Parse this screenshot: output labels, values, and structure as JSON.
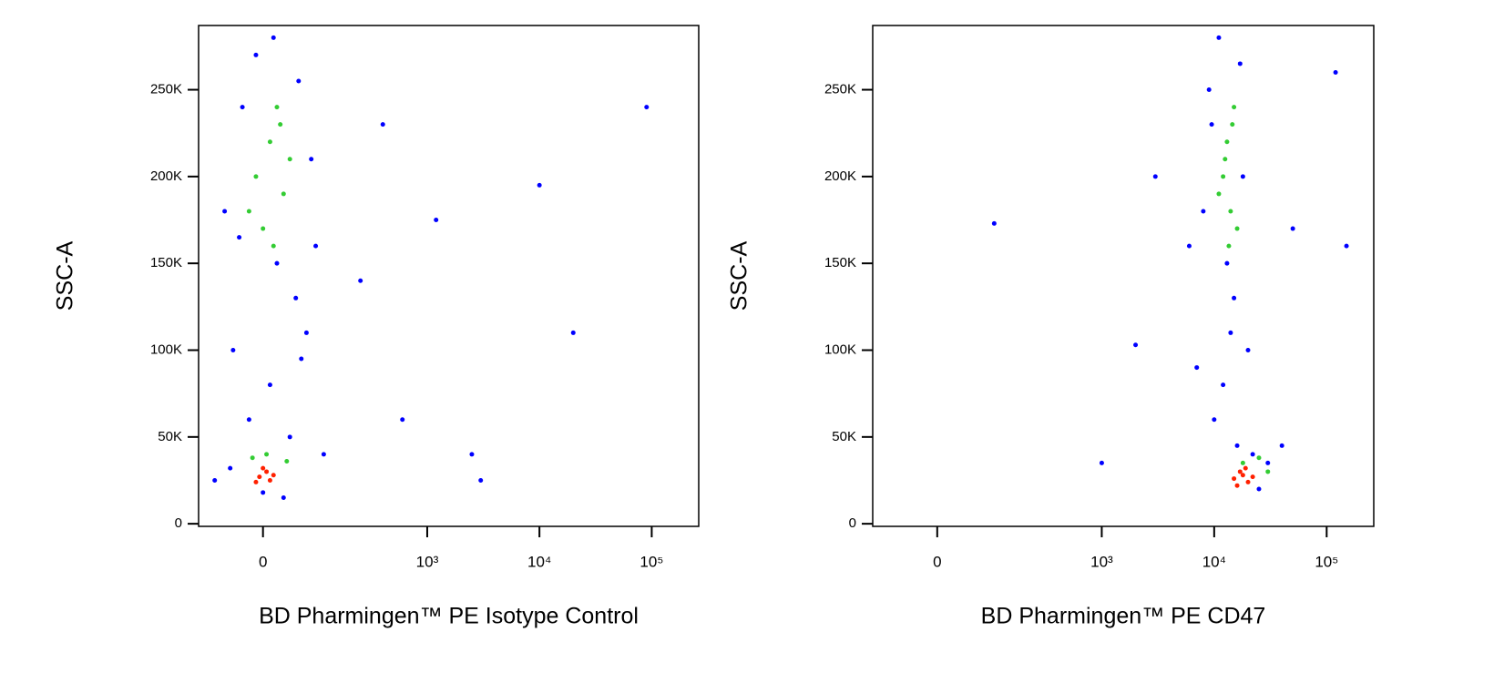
{
  "chart_data": [
    {
      "type": "scatter",
      "xscale": "biex",
      "xlabel": "BD Pharmingen™ PE Isotype Control",
      "ylabel": "SSC-A",
      "xlim": [
        -120,
        262144
      ],
      "ylim": [
        -1500,
        287000
      ],
      "xticks": [
        0,
        {
          "value": 1000,
          "label": "10³"
        },
        {
          "value": 10000,
          "label": "10⁴"
        },
        {
          "value": 100000,
          "label": "10⁵"
        }
      ],
      "yticks": [
        0,
        {
          "value": 50000,
          "label": "50K"
        },
        {
          "value": 100000,
          "label": "100K"
        },
        {
          "value": 150000,
          "label": "150K"
        },
        {
          "value": 200000,
          "label": "200K"
        },
        {
          "value": 250000,
          "label": "250K"
        }
      ],
      "series": [
        {
          "color": "#0000ff",
          "x": [
            -60,
            -30,
            -10,
            20,
            50,
            80,
            -45,
            10,
            60,
            90,
            -20,
            40,
            70,
            -50,
            0,
            30,
            110,
            -35,
            55,
            15,
            250,
            400,
            1200,
            2500,
            10000,
            90000,
            600,
            3000,
            20000,
            -80
          ],
          "y": [
            180000,
            240000,
            270000,
            150000,
            130000,
            210000,
            100000,
            80000,
            95000,
            160000,
            60000,
            50000,
            110000,
            32000,
            18000,
            15000,
            40000,
            165000,
            255000,
            280000,
            140000,
            230000,
            175000,
            40000,
            195000,
            240000,
            60000,
            25000,
            110000,
            25000
          ]
        },
        {
          "color": "#33cc33",
          "x": [
            -10,
            10,
            30,
            0,
            20,
            40,
            -20,
            15,
            25,
            -15,
            5,
            35
          ],
          "y": [
            200000,
            220000,
            190000,
            170000,
            240000,
            210000,
            180000,
            160000,
            230000,
            38000,
            40000,
            36000
          ]
        },
        {
          "color": "#ff2000",
          "x": [
            -5,
            5,
            10,
            0,
            15,
            -10
          ],
          "y": [
            27000,
            30000,
            25000,
            32000,
            28000,
            24000
          ]
        }
      ]
    },
    {
      "type": "scatter",
      "xscale": "biex",
      "xlabel": "BD Pharmingen™ PE CD47",
      "ylabel": "SSC-A",
      "xlim": [
        -120,
        262144
      ],
      "ylim": [
        -1500,
        287000
      ],
      "xticks": [
        0,
        {
          "value": 1000,
          "label": "10³"
        },
        {
          "value": 10000,
          "label": "10⁴"
        },
        {
          "value": 100000,
          "label": "10⁵"
        }
      ],
      "yticks": [
        0,
        {
          "value": 50000,
          "label": "50K"
        },
        {
          "value": 100000,
          "label": "100K"
        },
        {
          "value": 150000,
          "label": "150K"
        },
        {
          "value": 200000,
          "label": "200K"
        },
        {
          "value": 250000,
          "label": "250K"
        }
      ],
      "series": [
        {
          "color": "#0000ff",
          "x": [
            9000,
            11000,
            13000,
            15000,
            18000,
            20000,
            8000,
            7000,
            10000,
            12000,
            14000,
            16000,
            22000,
            25000,
            30000,
            40000,
            6000,
            9500,
            3000,
            2000,
            50000,
            120000,
            150000,
            1000,
            100,
            17000
          ],
          "y": [
            250000,
            280000,
            150000,
            130000,
            200000,
            100000,
            180000,
            90000,
            60000,
            80000,
            110000,
            45000,
            40000,
            20000,
            35000,
            45000,
            160000,
            230000,
            200000,
            103000,
            170000,
            260000,
            160000,
            35000,
            173000,
            265000
          ]
        },
        {
          "color": "#33cc33",
          "x": [
            12000,
            13000,
            14000,
            15000,
            16000,
            13500,
            12500,
            14500,
            11000,
            18000,
            25000,
            30000
          ],
          "y": [
            200000,
            220000,
            180000,
            240000,
            170000,
            160000,
            210000,
            230000,
            190000,
            35000,
            38000,
            30000
          ]
        },
        {
          "color": "#ff2000",
          "x": [
            15000,
            18000,
            20000,
            17000,
            22000,
            16000,
            19000
          ],
          "y": [
            26000,
            28000,
            24000,
            30000,
            27000,
            22000,
            32000
          ]
        }
      ]
    }
  ]
}
